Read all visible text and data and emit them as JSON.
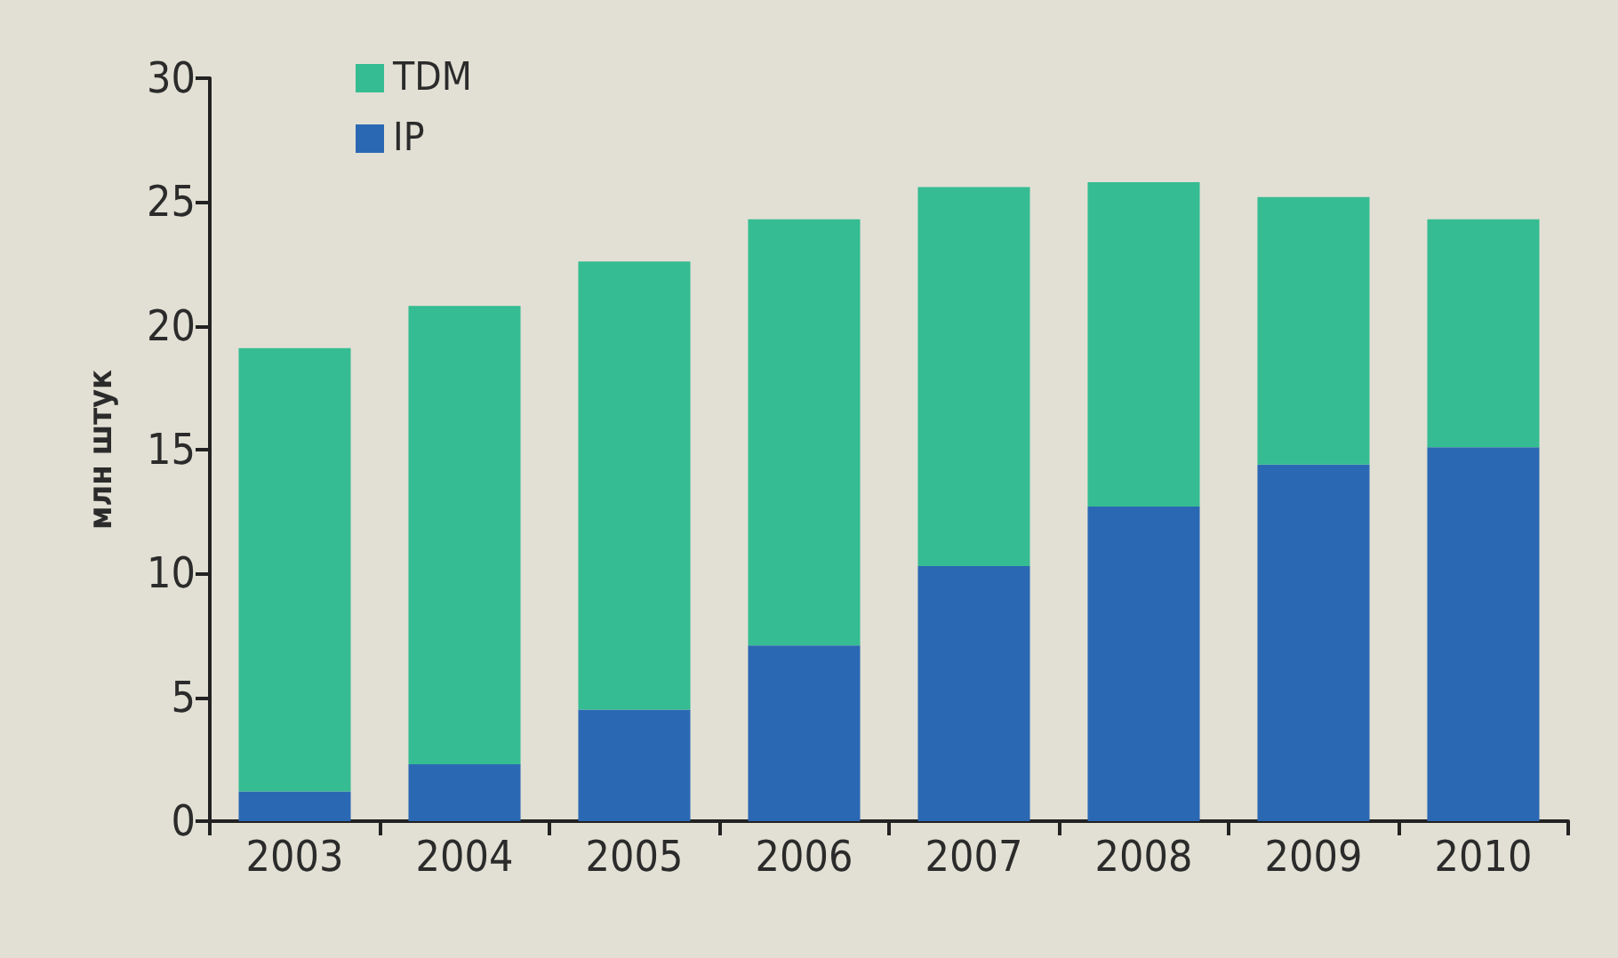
{
  "chart_data": {
    "type": "bar",
    "ylabel": "млн штук",
    "categories": [
      "2003",
      "2004",
      "2005",
      "2006",
      "2007",
      "2008",
      "2009",
      "2010"
    ],
    "stacked": true,
    "series": [
      {
        "name": "IP",
        "color": "#2b68b4",
        "values": [
          1.2,
          2.3,
          4.5,
          7.1,
          10.3,
          12.7,
          14.4,
          15.1
        ]
      },
      {
        "name": "TDM",
        "color": "#35bc92",
        "values": [
          17.9,
          18.5,
          18.1,
          17.2,
          15.3,
          13.1,
          10.8,
          9.2
        ]
      }
    ],
    "ylim": [
      0,
      30
    ],
    "yticks": [
      0,
      5,
      10,
      15,
      20,
      25,
      30
    ],
    "grid": false,
    "legend": "top left"
  }
}
